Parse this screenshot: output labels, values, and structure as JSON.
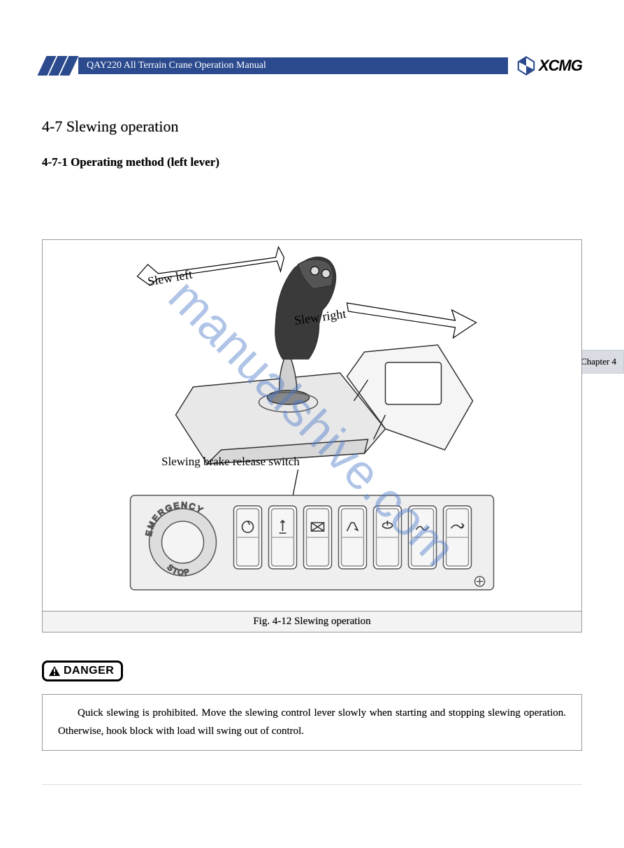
{
  "header": {
    "title": "QAY220 All Terrain Crane Operation Manual",
    "logo_text": "XCMG",
    "stripe_color": "#2c4b8f",
    "bar_bg": "#2c4b8f",
    "bar_fg": "#ffffff",
    "logo_mark_color": "#2c4b8f"
  },
  "section": {
    "number": "4-7",
    "title": "Slewing operation",
    "full": "4-7 Slewing operation"
  },
  "subsection": {
    "number": "4-7-1",
    "title": "Operating method (left lever)",
    "full": "4-7-1 Operating method (left lever)"
  },
  "figure": {
    "caption": "Fig. 4-12 Slewing operation",
    "labels": {
      "slew_left": "Slew left",
      "slew_right": "Slew right",
      "brake_switch": "Slewing brake release switch",
      "emergency": "EMERGENCY",
      "stop": "STOP"
    },
    "styling": {
      "border_color": "#999999",
      "caption_bg": "#f3f3f3",
      "line_color": "#333333",
      "lever_body_color": "#e8e8e8",
      "panel_bg": "#efefef",
      "switch_border": "#555555",
      "arrow_fill": "#ffffff",
      "arrow_stroke": "#000000"
    },
    "switch_count": 7
  },
  "danger": {
    "label": "DANGER",
    "text": "Quick slewing is prohibited. Move the slewing control lever slowly when starting and stopping slewing operation. Otherwise, hook block with load will swing out of control.",
    "box_border": "#999999",
    "label_border": "#000000"
  },
  "chapter_tab": {
    "label": "Chapter 4",
    "bg": "#d9dde3"
  },
  "watermark": {
    "text": "manualshive.com",
    "color": "rgba(79,124,201,0.45)",
    "rotation_deg": 45,
    "fontsize": 70
  },
  "page_bg": "#ffffff"
}
